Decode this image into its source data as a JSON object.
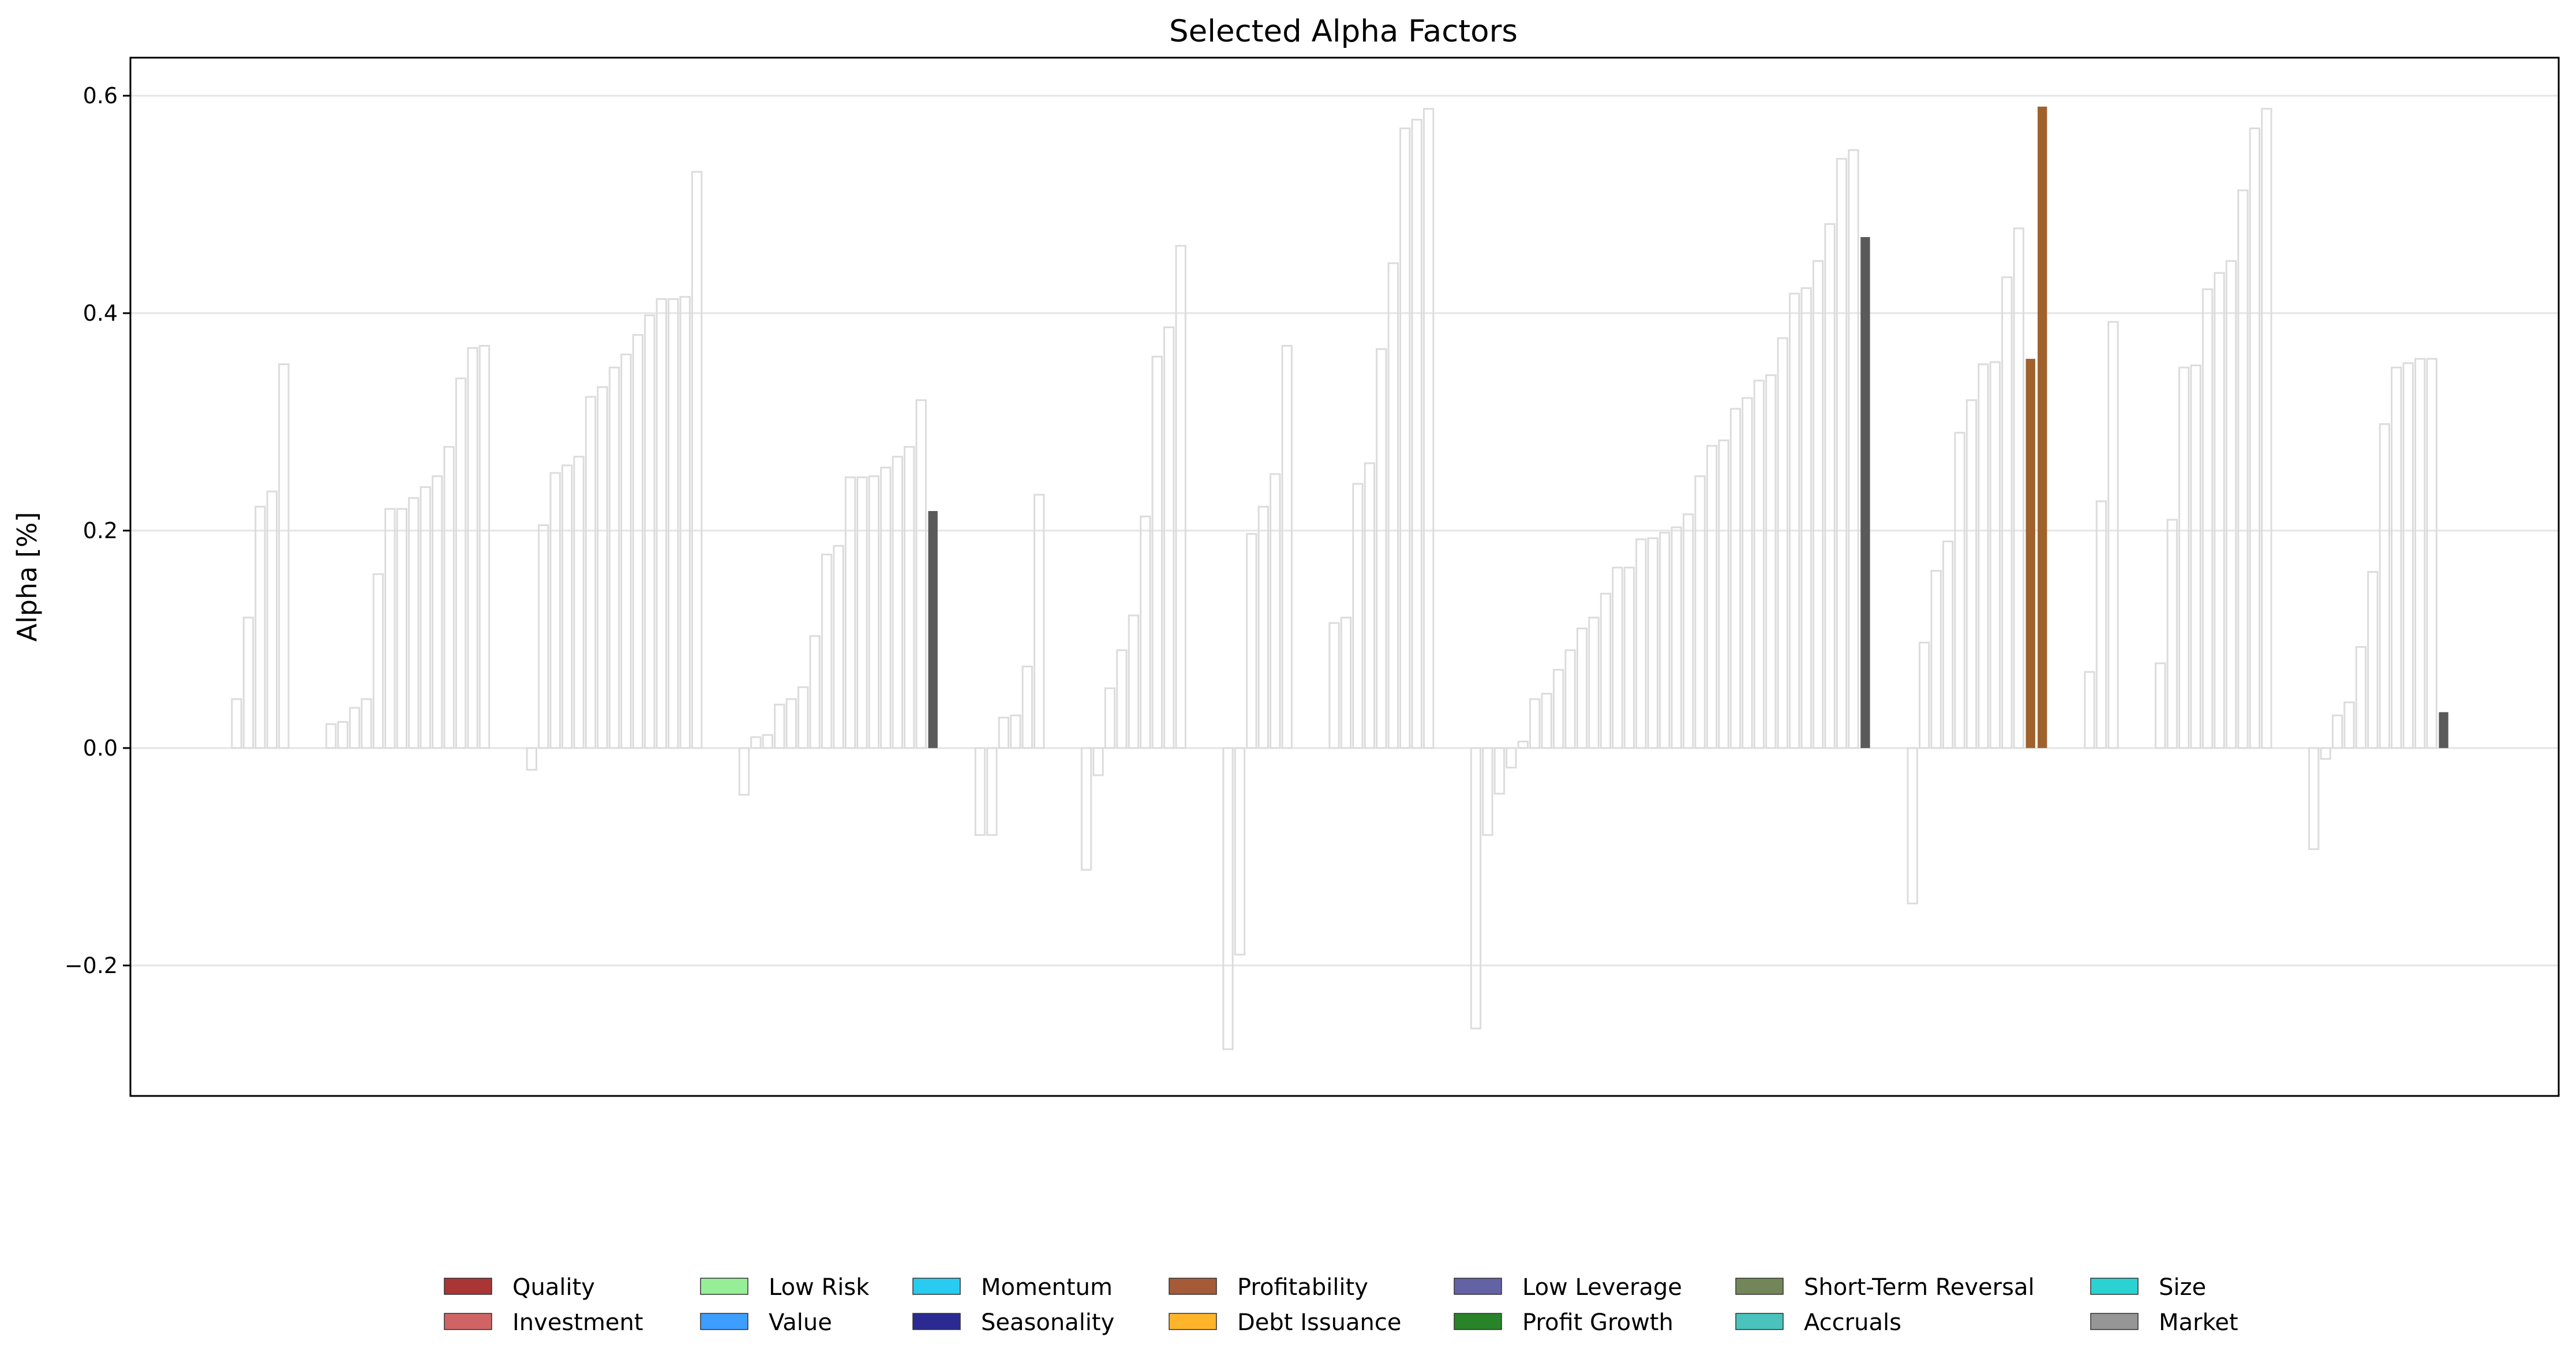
{
  "chart_data": {
    "type": "bar",
    "title": "Selected Alpha Factors",
    "xlabel": "",
    "ylabel": "Alpha [%]",
    "ylim": [
      -0.32,
      0.635
    ],
    "yticks": [
      -0.2,
      0.0,
      0.2,
      0.4,
      0.6
    ],
    "ytick_labels": [
      "−0.2",
      "0.0",
      "0.2",
      "0.4",
      "0.6"
    ],
    "grid": true,
    "legend_position": "bottom-center",
    "unselected_style": "outline-only",
    "legend": [
      {
        "name": "Quality",
        "color": "#a52a2a"
      },
      {
        "name": "Investment",
        "color": "#cd5c5c"
      },
      {
        "name": "Low Risk",
        "color": "#90ee90"
      },
      {
        "name": "Value",
        "color": "#3399ff"
      },
      {
        "name": "Momentum",
        "color": "#1ec8f0"
      },
      {
        "name": "Seasonality",
        "color": "#1f1f8c"
      },
      {
        "name": "Profitability",
        "color": "#a0522d"
      },
      {
        "name": "Debt Issuance",
        "color": "#ffb020"
      },
      {
        "name": "Low Leverage",
        "color": "#5a5aa0"
      },
      {
        "name": "Profit Growth",
        "color": "#1e7d1e"
      },
      {
        "name": "Short-Term Reversal",
        "color": "#6b8050"
      },
      {
        "name": "Accruals",
        "color": "#40c0b8"
      },
      {
        "name": "Size",
        "color": "#20d0d0"
      },
      {
        "name": "Market",
        "color": "#909090"
      }
    ],
    "groups": [
      {
        "values": [
          0.045,
          0.12,
          0.222,
          0.236,
          0.353
        ],
        "selected": {}
      },
      {
        "values": [
          0.022,
          0.024,
          0.037,
          0.045,
          0.16,
          0.22,
          0.22,
          0.23,
          0.24,
          0.25,
          0.277,
          0.34,
          0.368,
          0.37
        ],
        "selected": {}
      },
      {
        "values": [
          -0.02,
          0.205,
          0.253,
          0.26,
          0.268,
          0.323,
          0.332,
          0.35,
          0.362,
          0.38,
          0.398,
          0.413,
          0.413,
          0.415,
          0.53
        ],
        "selected": {}
      },
      {
        "values": [
          -0.043,
          0.01,
          0.012,
          0.04,
          0.045,
          0.056,
          0.103,
          0.178,
          0.186,
          0.249,
          0.249,
          0.25,
          0.258,
          0.268,
          0.277,
          0.32,
          0.218
        ],
        "selected": {
          "16": "#5a5a5a"
        }
      },
      {
        "values": [
          -0.08,
          -0.08,
          0.028,
          0.03,
          0.075,
          0.233
        ],
        "selected": {}
      },
      {
        "values": [
          -0.112,
          -0.025,
          0.055,
          0.09,
          0.122,
          0.213,
          0.36,
          0.387,
          0.462
        ],
        "selected": {}
      },
      {
        "values": [
          -0.277,
          -0.19,
          0.197,
          0.222,
          0.252,
          0.37
        ],
        "selected": {}
      },
      {
        "values": [
          0.115,
          0.12,
          0.243,
          0.262,
          0.367,
          0.446,
          0.57,
          0.578,
          0.588
        ],
        "selected": {}
      },
      {
        "values": [
          -0.258,
          -0.08,
          -0.042,
          -0.018,
          0.006,
          0.045,
          0.05,
          0.072,
          0.09,
          0.11,
          0.12,
          0.142,
          0.166,
          0.166,
          0.192,
          0.193,
          0.198,
          0.203,
          0.215,
          0.25,
          0.278,
          0.283,
          0.312,
          0.322,
          0.338,
          0.343,
          0.377,
          0.418,
          0.423,
          0.448,
          0.482,
          0.542,
          0.55,
          0.47
        ],
        "selected": {
          "33": "#5a5a5a"
        }
      },
      {
        "values": [
          -0.143,
          0.097,
          0.163,
          0.19,
          0.29,
          0.32,
          0.353,
          0.355,
          0.433,
          0.478,
          0.358,
          0.59
        ],
        "selected": {
          "10": "#a0622d",
          "11": "#a0622d"
        }
      },
      {
        "values": [
          0.07,
          0.227,
          0.392
        ],
        "selected": {}
      },
      {
        "values": [
          0.078,
          0.21,
          0.35,
          0.352,
          0.422,
          0.437,
          0.448,
          0.513,
          0.57,
          0.588
        ],
        "selected": {}
      },
      {
        "values": [
          -0.093,
          -0.01,
          0.03,
          0.042,
          0.093,
          0.162,
          0.298,
          0.35,
          0.354,
          0.358,
          0.358,
          0.033
        ],
        "selected": {
          "11": "#5a5a5a"
        }
      }
    ]
  }
}
